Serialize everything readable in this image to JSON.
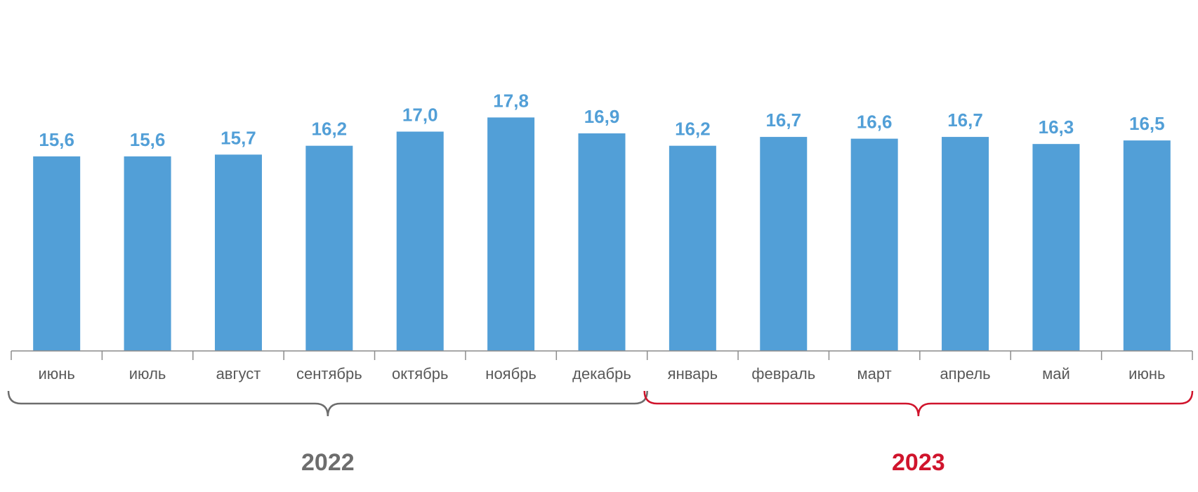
{
  "chart_data": {
    "type": "bar",
    "categories": [
      "июнь",
      "июль",
      "август",
      "сентябрь",
      "октябрь",
      "ноябрь",
      "декабрь",
      "январь",
      "февраль",
      "март",
      "апрель",
      "май",
      "июнь"
    ],
    "values": [
      15.6,
      15.6,
      15.7,
      16.2,
      17.0,
      17.8,
      16.9,
      16.2,
      16.7,
      16.6,
      16.7,
      16.3,
      16.5
    ],
    "value_labels": [
      "15,6",
      "15,6",
      "15,7",
      "16,2",
      "17,0",
      "17,8",
      "16,9",
      "16,2",
      "16,7",
      "16,6",
      "16,7",
      "16,3",
      "16,5"
    ],
    "title": "",
    "xlabel": "",
    "ylabel": "",
    "groups": [
      {
        "label": "2022",
        "start": 0,
        "end": 6,
        "color": "#6d6d6d"
      },
      {
        "label": "2023",
        "start": 7,
        "end": 12,
        "color": "#d0142c"
      }
    ],
    "bar_color": "#529fd7",
    "label_color": "#529fd7",
    "axis_color": "#8c8c8c",
    "grid": false,
    "legend": "none"
  }
}
